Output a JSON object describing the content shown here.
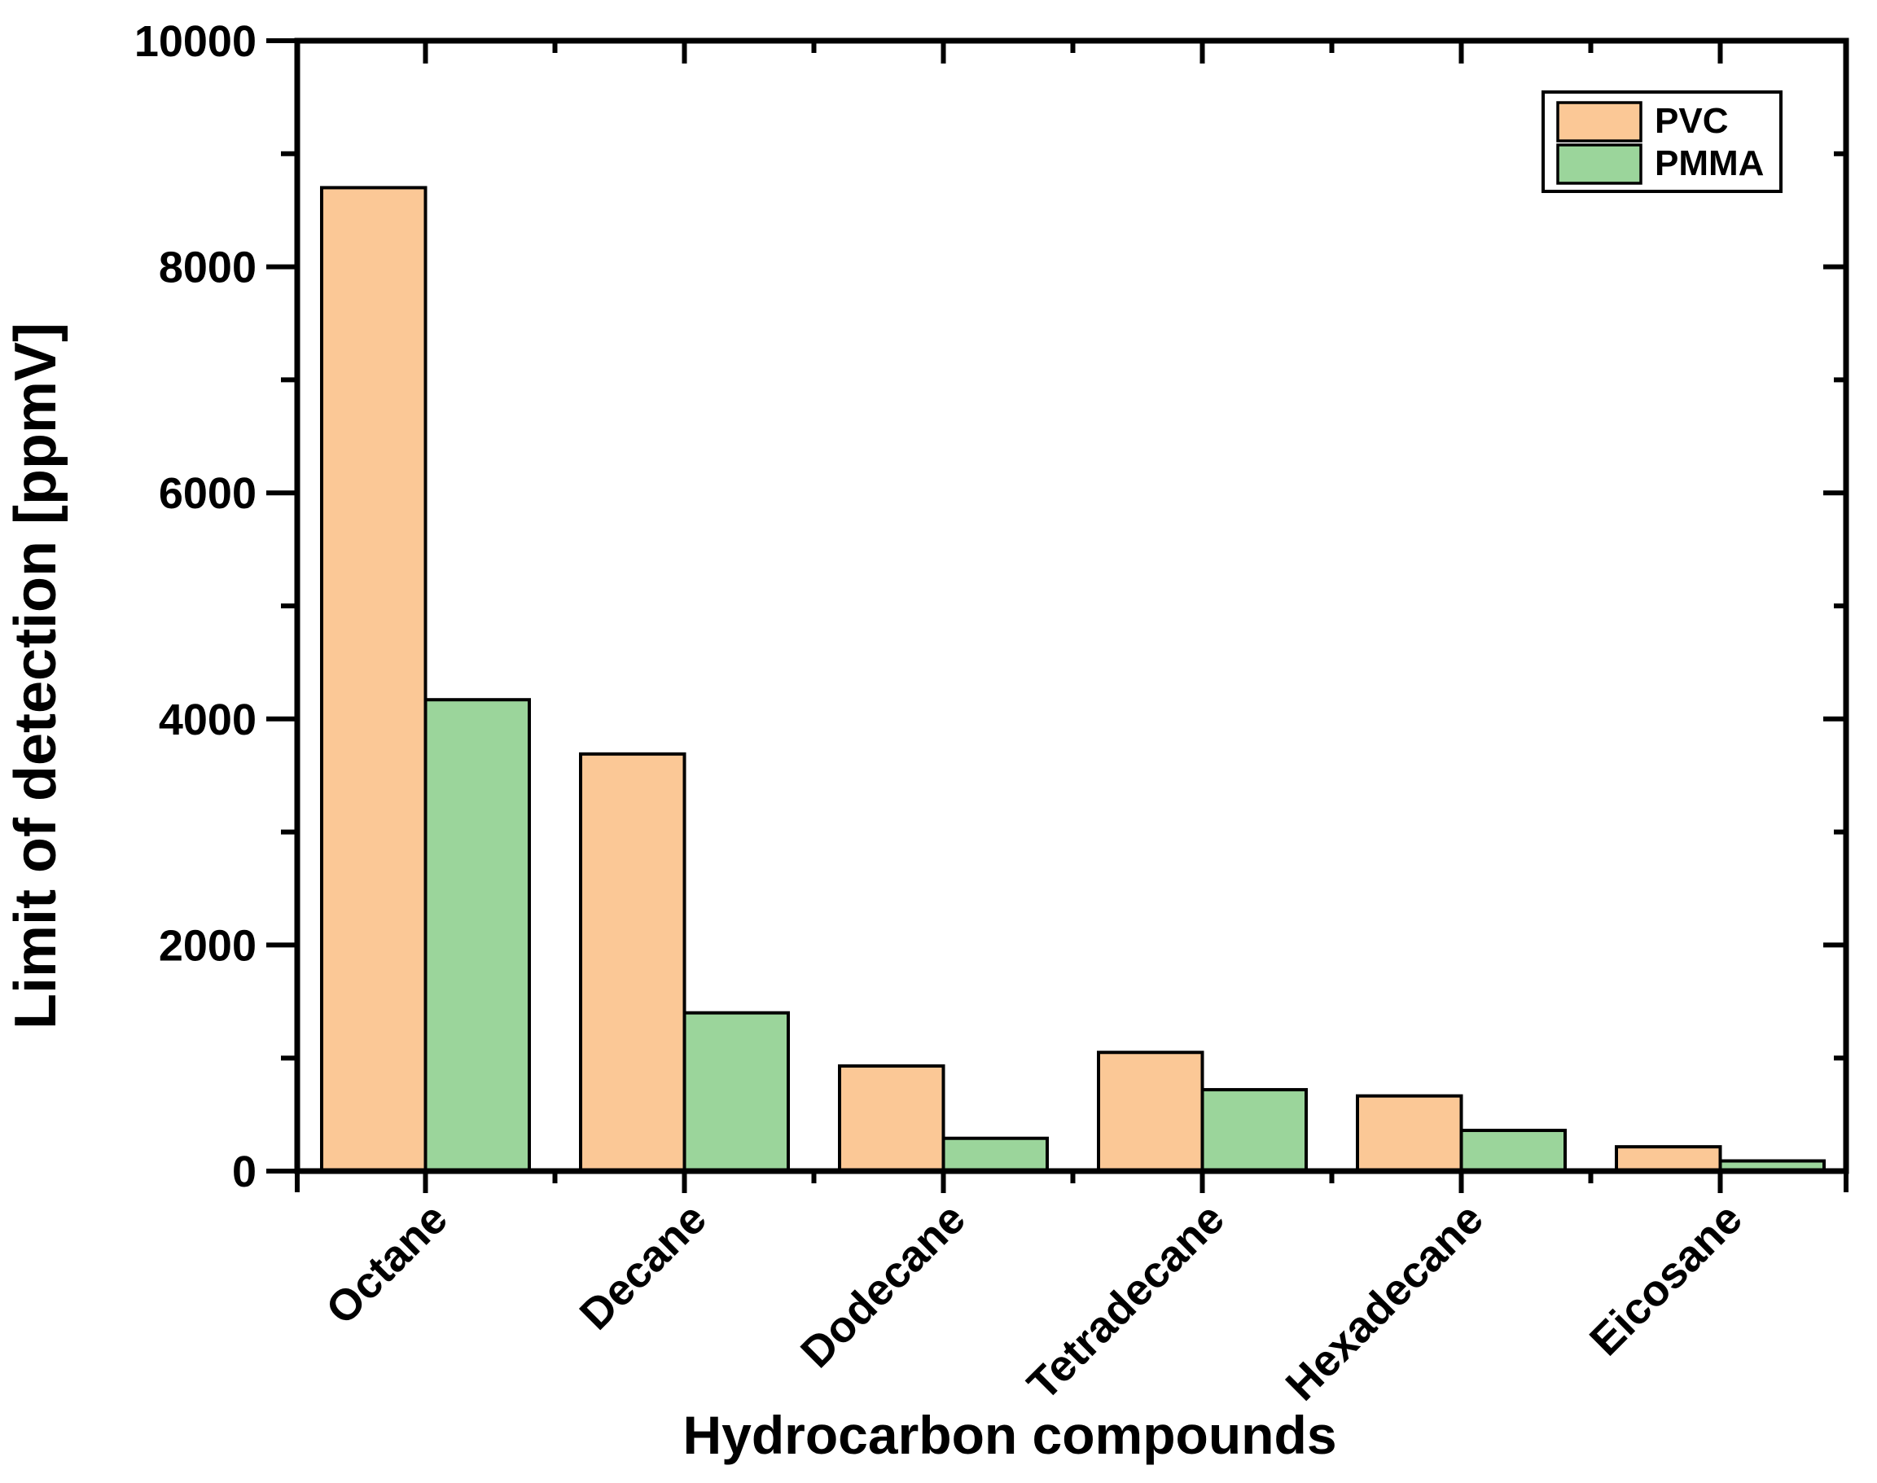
{
  "figure": {
    "background": "#ffffff",
    "text_color": "#000000",
    "axis_color": "#000000"
  },
  "chart_data": {
    "type": "bar",
    "title": "",
    "xlabel": "Hydrocarbon compounds",
    "ylabel": "Limit of detection [ppmV]",
    "categories": [
      "Octane",
      "Decane",
      "Dodecane",
      "Tetradecane",
      "Hexadecane",
      "Eicosane"
    ],
    "series": [
      {
        "name": "PVC",
        "color": "#FBC896",
        "border_color": "#000000",
        "values": [
          8700,
          3690,
          930,
          1050,
          665,
          215
        ]
      },
      {
        "name": "PMMA",
        "color": "#9BD59B",
        "border_color": "#000000",
        "values": [
          4170,
          1400,
          290,
          720,
          360,
          90
        ]
      }
    ],
    "ylim": [
      0,
      10000
    ],
    "y_major_step": 2000,
    "y_minor_step": 1000,
    "y_major_tick_labels": [
      "0",
      "2000",
      "4000",
      "6000",
      "8000",
      "10000"
    ],
    "grid": false,
    "legend_position": "top-right",
    "tick_style": "out-bottom-left, mirrored-in-top-right"
  },
  "legend": {
    "items": [
      {
        "label": "PVC",
        "swatch_color": "#FBC896"
      },
      {
        "label": "PMMA",
        "swatch_color": "#9BD59B"
      }
    ]
  }
}
